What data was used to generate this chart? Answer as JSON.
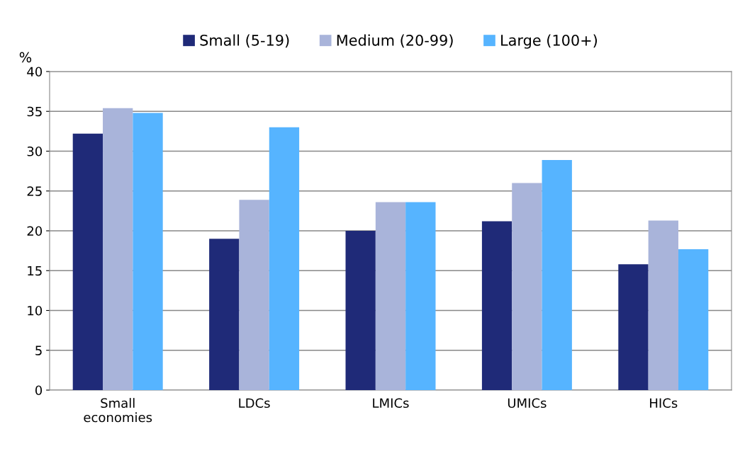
{
  "chart_data": {
    "type": "bar",
    "ylabel": "%",
    "categories": [
      "Small\neconomies",
      "LDCs",
      "LMICs",
      "UMICs",
      "HICs"
    ],
    "series": [
      {
        "name": "Small (5-19)",
        "color": "#1f2a78",
        "values": [
          32.2,
          19.0,
          20.0,
          21.2,
          15.8
        ]
      },
      {
        "name": "Medium (20-99)",
        "color": "#a9b4da",
        "values": [
          35.4,
          23.9,
          23.6,
          26.0,
          21.3
        ]
      },
      {
        "name": "Large (100+)",
        "color": "#56b4ff",
        "values": [
          34.8,
          33.0,
          23.6,
          28.9,
          17.7
        ]
      }
    ],
    "ylim": [
      0,
      40
    ],
    "yticks": [
      0,
      5,
      10,
      15,
      20,
      25,
      30,
      35,
      40
    ],
    "grid": "y",
    "legend": "top"
  }
}
